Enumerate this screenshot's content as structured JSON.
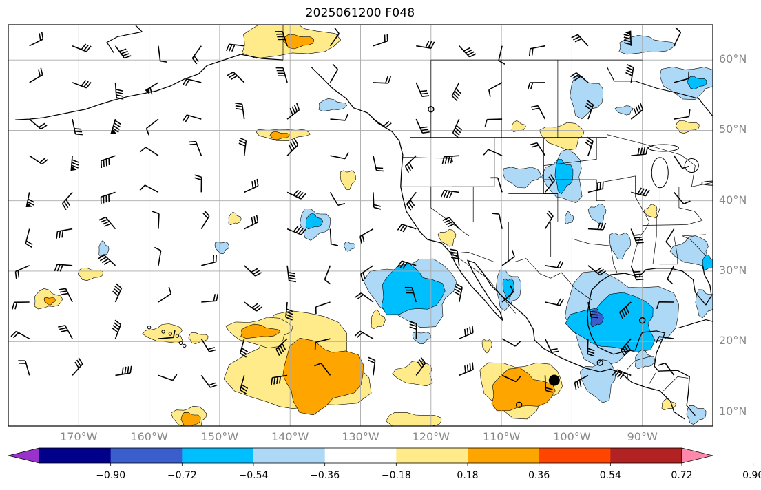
{
  "title": "2025061200 F048",
  "map": {
    "projection": "plate-carree",
    "lon_range": [
      -180,
      -80
    ],
    "lat_range": [
      8,
      65
    ],
    "gridlines": true,
    "lat_ticks": [
      {
        "value": 10,
        "label": "10°N"
      },
      {
        "value": 20,
        "label": "20°N"
      },
      {
        "value": 30,
        "label": "30°N"
      },
      {
        "value": 40,
        "label": "40°N"
      },
      {
        "value": 50,
        "label": "50°N"
      },
      {
        "value": 60,
        "label": "60°N"
      }
    ],
    "lon_ticks": [
      {
        "value": -170,
        "label": "170°W"
      },
      {
        "value": -160,
        "label": "160°W"
      },
      {
        "value": -150,
        "label": "150°W"
      },
      {
        "value": -140,
        "label": "140°W"
      },
      {
        "value": -130,
        "label": "130°W"
      },
      {
        "value": -120,
        "label": "120°W"
      },
      {
        "value": -110,
        "label": "110°W"
      },
      {
        "value": -100,
        "label": "100°W"
      },
      {
        "value": -90,
        "label": "90°W"
      }
    ],
    "wind_barbs": "black wind barbs on a regular lat/lon grid",
    "markers": [
      {
        "lon": -102.5,
        "lat": 14.5,
        "size": "large",
        "style": "filled"
      },
      {
        "lon": -120,
        "lat": 53,
        "size": "small",
        "style": "open"
      },
      {
        "lon": -90,
        "lat": 23,
        "size": "small",
        "style": "open"
      },
      {
        "lon": -96,
        "lat": 17,
        "size": "small",
        "style": "open"
      },
      {
        "lon": -107.5,
        "lat": 11,
        "size": "small",
        "style": "open"
      }
    ]
  },
  "colorbar": {
    "extend": "both",
    "ticks": [
      "−0.90",
      "−0.72",
      "−0.54",
      "−0.36",
      "−0.18",
      "0.18",
      "0.36",
      "0.54",
      "0.72",
      "0.90"
    ],
    "colors": [
      "#9932CC",
      "#00008B",
      "#3A5FCD",
      "#00BFFF",
      "#ADD8F6",
      "#FFFFFF",
      "#FFEB8A",
      "#FFA500",
      "#FF4500",
      "#B22222",
      "#FF88AA"
    ]
  },
  "contour_colors": {
    "pos1": "#FFEB8A",
    "pos2": "#FFA500",
    "neg1": "#ADD8F6",
    "neg2": "#00BFFF",
    "neg3": "#3A5FCD",
    "neg4": "#00008B",
    "outline": "#000000"
  }
}
